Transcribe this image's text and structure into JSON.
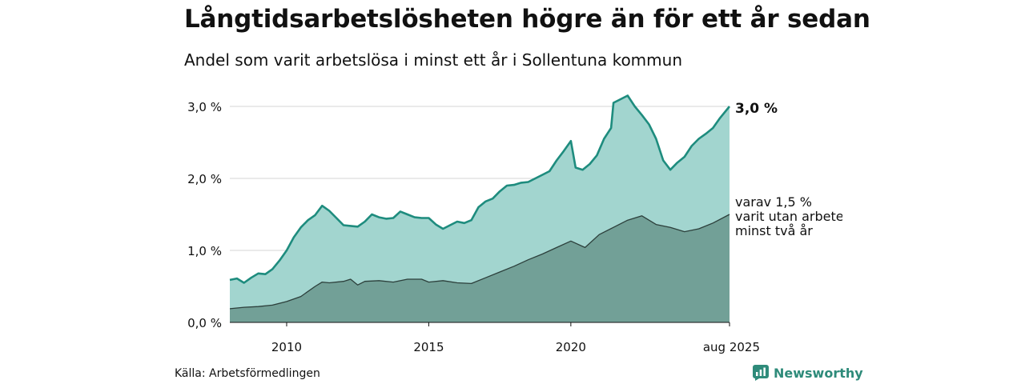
{
  "title": "Långtidsarbetslösheten högre än för ett år sedan",
  "subtitle": "Andel som varit arbetslösa i minst ett år i Sollentuna kommun",
  "source": "Källa: Arbetsförmedlingen",
  "brand": "Newsworthy",
  "colors": {
    "area_total": "#a2d5cf",
    "line_total": "#1e8c7e",
    "area_sub": "#72a097",
    "line_sub": "#2c3f3b",
    "grid": "#dddddd",
    "brand": "#2e8b7a"
  },
  "chart_data": {
    "type": "area",
    "x_range": [
      "2008-01",
      "2025-08"
    ],
    "ylim": [
      0,
      3.2
    ],
    "y_ticks": [
      0,
      1,
      2,
      3
    ],
    "y_tick_labels": [
      "0,0 %",
      "1,0 %",
      "2,0 %",
      "3,0 %"
    ],
    "x_ticks": [
      "2010-01",
      "2015-01",
      "2020-01",
      "2025-08"
    ],
    "x_tick_labels": [
      "2010",
      "2015",
      "2020",
      "aug 2025"
    ],
    "series": [
      {
        "key": "total",
        "points": [
          [
            "2008-01",
            0.59
          ],
          [
            "2008-04",
            0.61
          ],
          [
            "2008-07",
            0.55
          ],
          [
            "2008-10",
            0.62
          ],
          [
            "2009-01",
            0.68
          ],
          [
            "2009-04",
            0.67
          ],
          [
            "2009-07",
            0.74
          ],
          [
            "2009-10",
            0.86
          ],
          [
            "2010-01",
            1.0
          ],
          [
            "2010-04",
            1.18
          ],
          [
            "2010-07",
            1.32
          ],
          [
            "2010-10",
            1.42
          ],
          [
            "2011-01",
            1.49
          ],
          [
            "2011-04",
            1.62
          ],
          [
            "2011-07",
            1.55
          ],
          [
            "2011-10",
            1.45
          ],
          [
            "2012-01",
            1.35
          ],
          [
            "2012-04",
            1.34
          ],
          [
            "2012-07",
            1.33
          ],
          [
            "2012-10",
            1.4
          ],
          [
            "2013-01",
            1.5
          ],
          [
            "2013-04",
            1.46
          ],
          [
            "2013-07",
            1.44
          ],
          [
            "2013-10",
            1.45
          ],
          [
            "2014-01",
            1.54
          ],
          [
            "2014-04",
            1.5
          ],
          [
            "2014-07",
            1.46
          ],
          [
            "2014-10",
            1.45
          ],
          [
            "2015-01",
            1.45
          ],
          [
            "2015-04",
            1.36
          ],
          [
            "2015-07",
            1.3
          ],
          [
            "2015-10",
            1.35
          ],
          [
            "2016-01",
            1.4
          ],
          [
            "2016-04",
            1.38
          ],
          [
            "2016-07",
            1.42
          ],
          [
            "2016-10",
            1.6
          ],
          [
            "2017-01",
            1.68
          ],
          [
            "2017-04",
            1.72
          ],
          [
            "2017-07",
            1.82
          ],
          [
            "2017-10",
            1.9
          ],
          [
            "2018-01",
            1.91
          ],
          [
            "2018-04",
            1.94
          ],
          [
            "2018-07",
            1.95
          ],
          [
            "2018-10",
            2.0
          ],
          [
            "2019-01",
            2.05
          ],
          [
            "2019-04",
            2.1
          ],
          [
            "2019-07",
            2.25
          ],
          [
            "2019-10",
            2.38
          ],
          [
            "2020-01",
            2.52
          ],
          [
            "2020-03",
            2.15
          ],
          [
            "2020-06",
            2.12
          ],
          [
            "2020-09",
            2.2
          ],
          [
            "2020-12",
            2.32
          ],
          [
            "2021-03",
            2.55
          ],
          [
            "2021-06",
            2.7
          ],
          [
            "2021-07",
            3.05
          ],
          [
            "2021-10",
            3.1
          ],
          [
            "2022-01",
            3.15
          ],
          [
            "2022-04",
            3.0
          ],
          [
            "2022-07",
            2.88
          ],
          [
            "2022-10",
            2.75
          ],
          [
            "2023-01",
            2.55
          ],
          [
            "2023-04",
            2.25
          ],
          [
            "2023-07",
            2.12
          ],
          [
            "2023-10",
            2.22
          ],
          [
            "2024-01",
            2.3
          ],
          [
            "2024-04",
            2.45
          ],
          [
            "2024-07",
            2.55
          ],
          [
            "2024-10",
            2.62
          ],
          [
            "2025-01",
            2.7
          ],
          [
            "2025-04",
            2.84
          ],
          [
            "2025-08",
            3.0
          ]
        ],
        "end_label": "3,0 %"
      },
      {
        "key": "sub",
        "points": [
          [
            "2008-01",
            0.19
          ],
          [
            "2008-07",
            0.21
          ],
          [
            "2009-01",
            0.22
          ],
          [
            "2009-07",
            0.24
          ],
          [
            "2010-01",
            0.29
          ],
          [
            "2010-07",
            0.36
          ],
          [
            "2011-01",
            0.5
          ],
          [
            "2011-04",
            0.56
          ],
          [
            "2011-07",
            0.55
          ],
          [
            "2012-01",
            0.57
          ],
          [
            "2012-04",
            0.6
          ],
          [
            "2012-07",
            0.52
          ],
          [
            "2012-10",
            0.57
          ],
          [
            "2013-04",
            0.58
          ],
          [
            "2013-10",
            0.56
          ],
          [
            "2014-04",
            0.6
          ],
          [
            "2014-10",
            0.6
          ],
          [
            "2015-01",
            0.56
          ],
          [
            "2015-07",
            0.58
          ],
          [
            "2016-01",
            0.55
          ],
          [
            "2016-07",
            0.54
          ],
          [
            "2017-01",
            0.62
          ],
          [
            "2017-07",
            0.7
          ],
          [
            "2018-01",
            0.78
          ],
          [
            "2018-07",
            0.87
          ],
          [
            "2019-01",
            0.95
          ],
          [
            "2019-07",
            1.04
          ],
          [
            "2020-01",
            1.13
          ],
          [
            "2020-07",
            1.04
          ],
          [
            "2021-01",
            1.22
          ],
          [
            "2021-07",
            1.32
          ],
          [
            "2022-01",
            1.42
          ],
          [
            "2022-07",
            1.48
          ],
          [
            "2023-01",
            1.36
          ],
          [
            "2023-07",
            1.32
          ],
          [
            "2024-01",
            1.26
          ],
          [
            "2024-07",
            1.3
          ],
          [
            "2025-01",
            1.38
          ],
          [
            "2025-08",
            1.5
          ]
        ],
        "end_label_lines": [
          "varav 1,5 %",
          "varit utan arbete",
          "minst två år"
        ]
      }
    ]
  }
}
